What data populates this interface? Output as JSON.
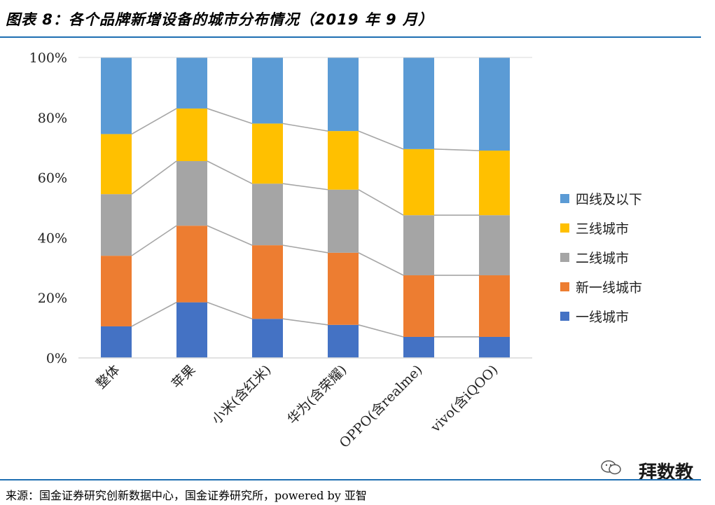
{
  "header": {
    "title": "图表 8：各个品牌新增设备的城市分布情况（2019 年 9 月）"
  },
  "footer": {
    "source": "来源：国金证券研究创新数据中心，国金证券研究所，powered by 亚智"
  },
  "watermark": {
    "text": "拜数教"
  },
  "colors": {
    "tier1": "#4472c4",
    "newtier1": "#ed7d31",
    "tier2": "#a5a5a5",
    "tier3": "#ffc000",
    "tier4": "#5b9bd5",
    "connector": "#a6a6a6",
    "axis": "#d9d9d9",
    "rule": "#1f6fb2"
  },
  "chart_data": {
    "type": "bar",
    "stacked": true,
    "normalized": true,
    "categories": [
      "整体",
      "苹果",
      "小米(含红米)",
      "华为(含荣耀)",
      "OPPO(含realme)",
      "vivo(含iQOO)"
    ],
    "series": [
      {
        "name": "一线城市",
        "color_key": "tier1",
        "values": [
          10.5,
          18.5,
          13,
          11,
          7,
          7
        ]
      },
      {
        "name": "新一线城市",
        "color_key": "newtier1",
        "values": [
          23.5,
          25.5,
          24.5,
          24,
          20.5,
          20.5
        ]
      },
      {
        "name": "二线城市",
        "color_key": "tier2",
        "values": [
          20.5,
          21.5,
          20.5,
          21,
          20,
          20
        ]
      },
      {
        "name": "三线城市",
        "color_key": "tier3",
        "values": [
          20,
          17.5,
          20,
          19.5,
          22,
          21.5
        ]
      },
      {
        "name": "四线及以下",
        "color_key": "tier4",
        "values": [
          25.5,
          17,
          22,
          24.5,
          30.5,
          31
        ]
      }
    ],
    "ylim": [
      0,
      100
    ],
    "yticks": [
      "0%",
      "20%",
      "40%",
      "60%",
      "80%",
      "100%"
    ],
    "legend_position": "right",
    "legend_order": [
      "四线及以下",
      "三线城市",
      "二线城市",
      "新一线城市",
      "一线城市"
    ],
    "grid": false,
    "connector_lines": true
  }
}
